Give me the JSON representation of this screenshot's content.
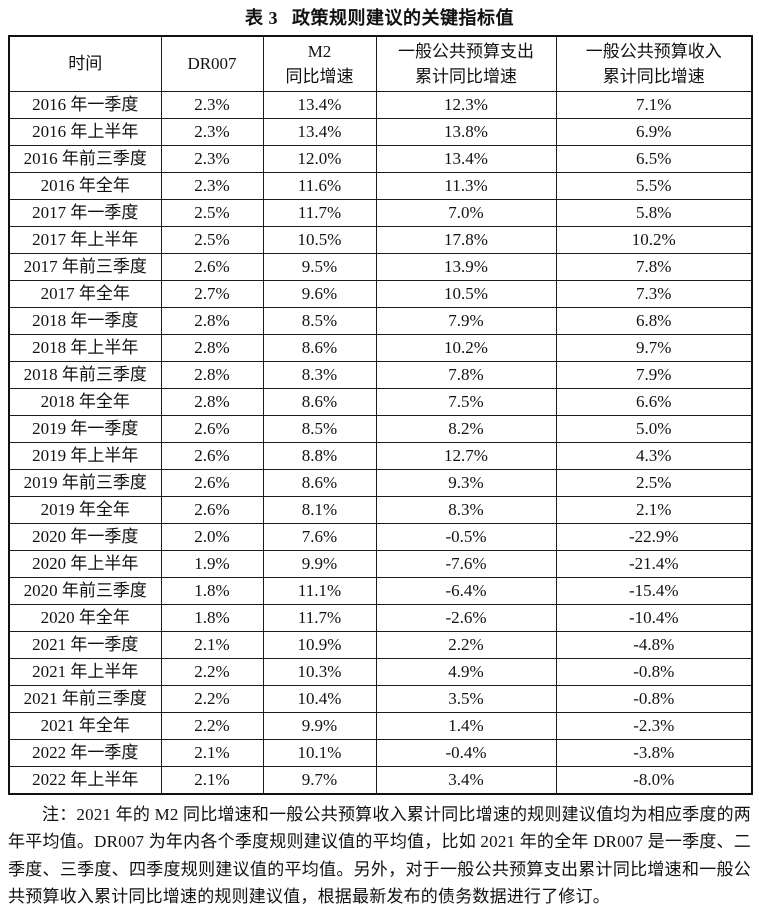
{
  "page": {
    "title_prefix": "表 3",
    "title_text": "政策规则建议的关键指标值"
  },
  "table": {
    "headers": [
      {
        "lines": [
          "时间"
        ]
      },
      {
        "lines": [
          "DR007"
        ]
      },
      {
        "lines": [
          "M2",
          "同比增速"
        ]
      },
      {
        "lines": [
          "一般公共预算支出",
          "累计同比增速"
        ]
      },
      {
        "lines": [
          "一般公共预算收入",
          "累计同比增速"
        ]
      }
    ],
    "rows": [
      [
        "2016 年一季度",
        "2.3%",
        "13.4%",
        "12.3%",
        "7.1%"
      ],
      [
        "2016 年上半年",
        "2.3%",
        "13.4%",
        "13.8%",
        "6.9%"
      ],
      [
        "2016 年前三季度",
        "2.3%",
        "12.0%",
        "13.4%",
        "6.5%"
      ],
      [
        "2016 年全年",
        "2.3%",
        "11.6%",
        "11.3%",
        "5.5%"
      ],
      [
        "2017 年一季度",
        "2.5%",
        "11.7%",
        "7.0%",
        "5.8%"
      ],
      [
        "2017 年上半年",
        "2.5%",
        "10.5%",
        "17.8%",
        "10.2%"
      ],
      [
        "2017 年前三季度",
        "2.6%",
        "9.5%",
        "13.9%",
        "7.8%"
      ],
      [
        "2017 年全年",
        "2.7%",
        "9.6%",
        "10.5%",
        "7.3%"
      ],
      [
        "2018 年一季度",
        "2.8%",
        "8.5%",
        "7.9%",
        "6.8%"
      ],
      [
        "2018 年上半年",
        "2.8%",
        "8.6%",
        "10.2%",
        "9.7%"
      ],
      [
        "2018 年前三季度",
        "2.8%",
        "8.3%",
        "7.8%",
        "7.9%"
      ],
      [
        "2018 年全年",
        "2.8%",
        "8.6%",
        "7.5%",
        "6.6%"
      ],
      [
        "2019 年一季度",
        "2.6%",
        "8.5%",
        "8.2%",
        "5.0%"
      ],
      [
        "2019 年上半年",
        "2.6%",
        "8.8%",
        "12.7%",
        "4.3%"
      ],
      [
        "2019 年前三季度",
        "2.6%",
        "8.6%",
        "9.3%",
        "2.5%"
      ],
      [
        "2019 年全年",
        "2.6%",
        "8.1%",
        "8.3%",
        "2.1%"
      ],
      [
        "2020 年一季度",
        "2.0%",
        "7.6%",
        "-0.5%",
        "-22.9%"
      ],
      [
        "2020 年上半年",
        "1.9%",
        "9.9%",
        "-7.6%",
        "-21.4%"
      ],
      [
        "2020 年前三季度",
        "1.8%",
        "11.1%",
        "-6.4%",
        "-15.4%"
      ],
      [
        "2020 年全年",
        "1.8%",
        "11.7%",
        "-2.6%",
        "-10.4%"
      ],
      [
        "2021 年一季度",
        "2.1%",
        "10.9%",
        "2.2%",
        "-4.8%"
      ],
      [
        "2021 年上半年",
        "2.2%",
        "10.3%",
        "4.9%",
        "-0.8%"
      ],
      [
        "2021 年前三季度",
        "2.2%",
        "10.4%",
        "3.5%",
        "-0.8%"
      ],
      [
        "2021 年全年",
        "2.2%",
        "9.9%",
        "1.4%",
        "-2.3%"
      ],
      [
        "2022 年一季度",
        "2.1%",
        "10.1%",
        "-0.4%",
        "-3.8%"
      ],
      [
        "2022 年上半年",
        "2.1%",
        "9.7%",
        "3.4%",
        "-8.0%"
      ]
    ]
  },
  "footnote": "注：2021 年的 M2 同比增速和一般公共预算收入累计同比增速的规则建议值均为相应季度的两年平均值。DR007 为年内各个季度规则建议值的平均值，比如 2021 年的全年 DR007 是一季度、二季度、三季度、四季度规则建议值的平均值。另外，对于一般公共预算支出累计同比增速和一般公共预算收入累计同比增速的规则建议值，根据最新发布的债务数据进行了修订。"
}
